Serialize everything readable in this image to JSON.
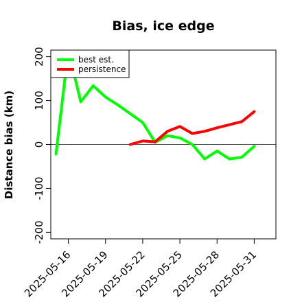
{
  "chart_data": {
    "type": "line",
    "title": "Bias, ice edge",
    "xlabel": "",
    "ylabel": "Distance bias (km)",
    "ylim": [
      -215,
      215
    ],
    "xlim": [
      "2025-05-14T14:00",
      "2025-06-01T18:00"
    ],
    "yticks": [
      -200,
      -100,
      0,
      100,
      200
    ],
    "xticks": [
      "2025-05-16",
      "2025-05-19",
      "2025-05-22",
      "2025-05-25",
      "2025-05-28",
      "2025-05-31"
    ],
    "grid": false,
    "zero_line": true,
    "legend": "top-left",
    "series": [
      {
        "name": "best est.",
        "color": "#00ff00",
        "x": [
          "2025-05-15",
          "2025-05-16",
          "2025-05-17",
          "2025-05-18",
          "2025-05-19",
          "2025-05-20",
          "2025-05-21",
          "2025-05-22",
          "2025-05-23",
          "2025-05-24",
          "2025-05-25",
          "2025-05-26",
          "2025-05-27",
          "2025-05-28",
          "2025-05-29",
          "2025-05-30",
          "2025-05-31"
        ],
        "values": [
          -22,
          215,
          97,
          134,
          108,
          90,
          70,
          50,
          5,
          20,
          15,
          0,
          -33,
          -15,
          -33,
          -29,
          -4
        ]
      },
      {
        "name": "persistence",
        "color": "#ff0000",
        "x": [
          "2025-05-21",
          "2025-05-22",
          "2025-05-23",
          "2025-05-24",
          "2025-05-25",
          "2025-05-26",
          "2025-05-27",
          "2025-05-28",
          "2025-05-29",
          "2025-05-30",
          "2025-05-31"
        ],
        "values": [
          0,
          8,
          6,
          30,
          41,
          25,
          30,
          38,
          45,
          52,
          75
        ]
      }
    ]
  }
}
